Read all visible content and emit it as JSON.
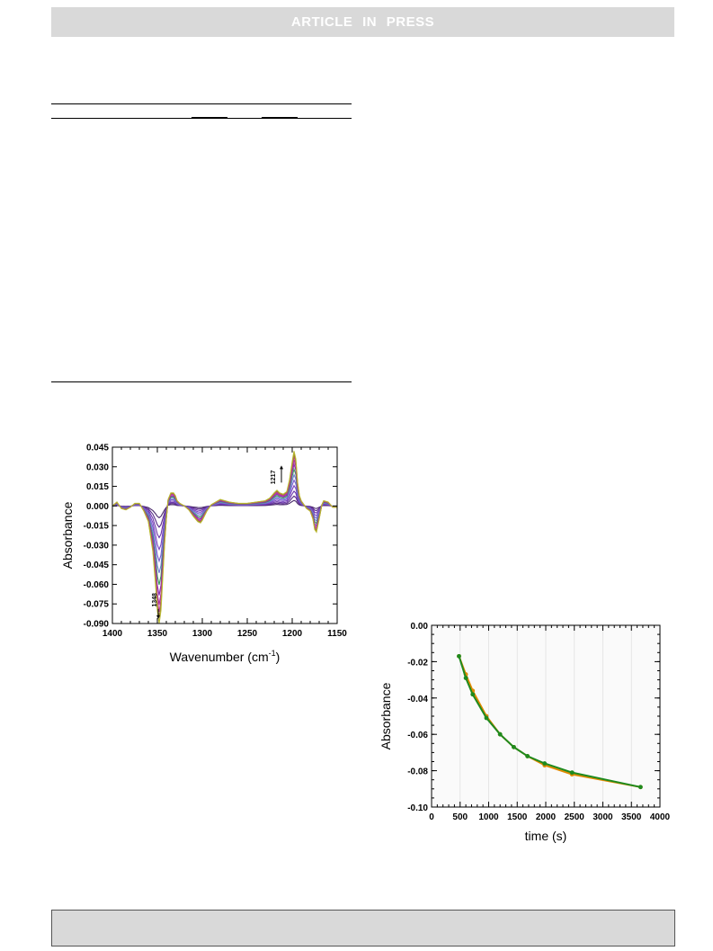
{
  "header": {
    "banner_text": "ARTICLE IN PRESS"
  },
  "figure1": {
    "chart_data": {
      "type": "line",
      "xlabel": "Wavenumber (cm-1)",
      "ylabel": "Absorbance",
      "xlim": [
        1400,
        1150
      ],
      "ylim": [
        -0.09,
        0.045
      ],
      "x_ticks": [
        "1400",
        "1350",
        "1300",
        "1250",
        "1200",
        "1150"
      ],
      "y_ticks": [
        "0.045",
        "0.030",
        "0.015",
        "0.000",
        "-0.015",
        "-0.030",
        "-0.045",
        "-0.060",
        "-0.075",
        "-0.090"
      ],
      "annotations": [
        {
          "text": "1348",
          "direction": "down"
        },
        {
          "text": "1217",
          "direction": "up"
        }
      ],
      "x": [
        1400,
        1395,
        1390,
        1385,
        1380,
        1375,
        1370,
        1365,
        1360,
        1355,
        1352,
        1350,
        1348,
        1346,
        1344,
        1342,
        1340,
        1338,
        1335,
        1332,
        1330,
        1328,
        1325,
        1320,
        1315,
        1310,
        1305,
        1302,
        1300,
        1295,
        1290,
        1285,
        1280,
        1275,
        1270,
        1260,
        1250,
        1240,
        1230,
        1225,
        1220,
        1217,
        1214,
        1210,
        1206,
        1203,
        1200,
        1198,
        1196,
        1194,
        1192,
        1190,
        1187,
        1184,
        1180,
        1177,
        1175,
        1173,
        1170,
        1167,
        1165,
        1160,
        1155,
        1150
      ],
      "final_spectrum": [
        0.0,
        0.003,
        -0.002,
        -0.003,
        -0.001,
        0.002,
        0.002,
        -0.004,
        -0.012,
        -0.035,
        -0.06,
        -0.08,
        -0.09,
        -0.08,
        -0.055,
        -0.03,
        -0.01,
        0.005,
        0.01,
        0.01,
        0.008,
        0.004,
        0.002,
        0.0,
        -0.003,
        -0.008,
        -0.012,
        -0.013,
        -0.011,
        -0.004,
        0.001,
        0.003,
        0.005,
        0.004,
        0.003,
        0.002,
        0.002,
        0.003,
        0.004,
        0.006,
        0.01,
        0.012,
        0.01,
        0.009,
        0.011,
        0.02,
        0.034,
        0.042,
        0.036,
        0.018,
        0.008,
        0.004,
        0.001,
        -0.002,
        -0.004,
        -0.01,
        -0.018,
        -0.02,
        -0.01,
        0.001,
        0.004,
        0.003,
        -0.001,
        -0.001
      ],
      "series_scales": [
        0.1,
        0.18,
        0.27,
        0.37,
        0.47,
        0.57,
        0.67,
        0.76,
        0.84,
        0.9,
        0.95,
        1.0
      ],
      "series_colors": [
        "#4a2a6b",
        "#5a2d8a",
        "#6a35a8",
        "#7a46c0",
        "#7b5fd0",
        "#6f7ed8",
        "#3d9c5a",
        "#8a2fb0",
        "#b0309b",
        "#c0409a",
        "#9a7a2a",
        "#b8b830"
      ]
    }
  },
  "figure2": {
    "chart_data": {
      "type": "line",
      "xlabel": "time (s)",
      "ylabel": "Absorbance",
      "xlim": [
        0,
        4000
      ],
      "ylim": [
        -0.1,
        0.0
      ],
      "x_ticks": [
        "0",
        "500",
        "1000",
        "1500",
        "2000",
        "2500",
        "3000",
        "3500",
        "4000"
      ],
      "y_ticks": [
        "0.00",
        "-0.02",
        "-0.04",
        "-0.06",
        "-0.08",
        "-0.10"
      ],
      "grid": true,
      "x": [
        480,
        600,
        720,
        960,
        1200,
        1440,
        1680,
        1980,
        2460,
        3660
      ],
      "series": [
        {
          "color": "#e08a00",
          "values": [
            -0.017,
            -0.027,
            -0.036,
            -0.05,
            -0.06,
            -0.067,
            -0.072,
            -0.077,
            -0.082,
            -0.089
          ]
        },
        {
          "color": "#1e8a1e",
          "values": [
            -0.017,
            -0.029,
            -0.038,
            -0.051,
            -0.06,
            -0.067,
            -0.072,
            -0.076,
            -0.081,
            -0.089
          ]
        }
      ]
    }
  }
}
